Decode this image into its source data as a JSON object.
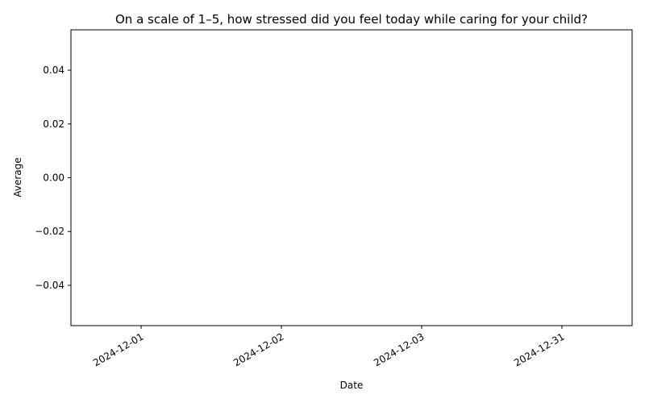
{
  "chart_data": {
    "type": "bar",
    "title": "On a scale of 1–5, how stressed did you feel today while caring for your child?",
    "x_label": "Date",
    "y_label": "Average",
    "categories": [
      "2024-12-01",
      "2024-12-02",
      "2024-12-03",
      "2024-12-31"
    ],
    "values": [
      0,
      0,
      0,
      0
    ],
    "color": "#1f77b4",
    "ylim": [
      -0.055,
      0.055
    ],
    "yticks": [
      {
        "value": -0.04,
        "label": "−0.04"
      },
      {
        "value": -0.02,
        "label": "−0.02"
      },
      {
        "value": 0,
        "label": "0.00"
      },
      {
        "value": 0.02,
        "label": "0.02"
      },
      {
        "value": 0.04,
        "label": "0.04"
      }
    ],
    "grid": false
  }
}
